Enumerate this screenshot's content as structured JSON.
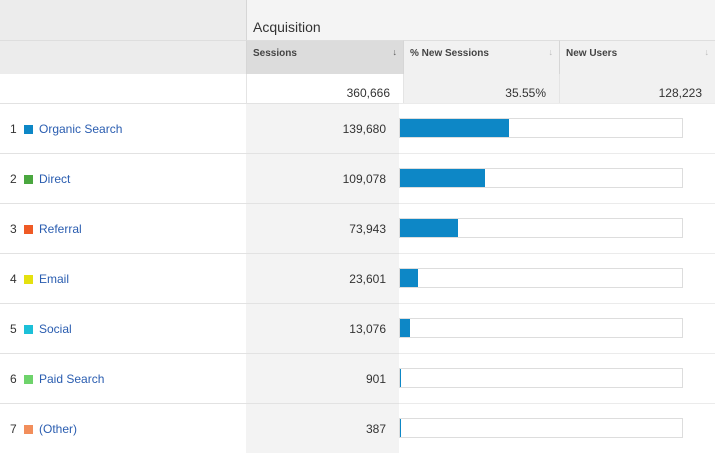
{
  "header": {
    "group_title": "Acquisition",
    "columns": [
      {
        "label": "Sessions",
        "sort_icon": "arrow-down-icon"
      },
      {
        "label": "% New Sessions",
        "sort_icon": "sort-icon"
      },
      {
        "label": "New Users",
        "sort_icon": "sort-icon"
      }
    ]
  },
  "totals": {
    "sessions": "360,666",
    "pct_new_sessions": "35.55%",
    "new_users": "128,223"
  },
  "rows": [
    {
      "index": "1",
      "name": "Organic Search",
      "color": "#0d87c6",
      "sessions": "139,680",
      "share": 0.3873
    },
    {
      "index": "2",
      "name": "Direct",
      "color": "#4aa73f",
      "sessions": "109,078",
      "share": 0.3024
    },
    {
      "index": "3",
      "name": "Referral",
      "color": "#ef5a25",
      "sessions": "73,943",
      "share": 0.205
    },
    {
      "index": "4",
      "name": "Email",
      "color": "#e5e10f",
      "sessions": "23,601",
      "share": 0.0654
    },
    {
      "index": "5",
      "name": "Social",
      "color": "#1cc0d8",
      "sessions": "13,076",
      "share": 0.0363
    },
    {
      "index": "6",
      "name": "Paid Search",
      "color": "#6ed36b",
      "sessions": "901",
      "share": 0.0025
    },
    {
      "index": "7",
      "name": "(Other)",
      "color": "#f28e5b",
      "sessions": "387",
      "share": 0.0011
    }
  ]
}
